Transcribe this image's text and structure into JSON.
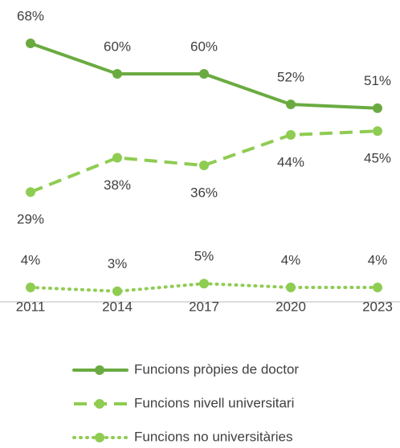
{
  "chart_data": {
    "type": "line",
    "categories": [
      "2011",
      "2014",
      "2017",
      "2020",
      "2023"
    ],
    "series": [
      {
        "name": "Funcions pròpies de doctor",
        "color": "#6aab41",
        "line_style": "solid",
        "label_position": "above",
        "values": [
          68,
          60,
          60,
          52,
          51
        ],
        "value_labels": [
          "68%",
          "60%",
          "60%",
          "52%",
          "51%"
        ]
      },
      {
        "name": "Funcions nivell universitari",
        "color": "#8fcc52",
        "line_style": "dashed",
        "label_position": "below",
        "values": [
          29,
          38,
          36,
          44,
          45
        ],
        "value_labels": [
          "29%",
          "38%",
          "36%",
          "44%",
          "45%"
        ]
      },
      {
        "name": "Funcions no universitàries",
        "color": "#8fcc52",
        "line_style": "dotted",
        "label_position": "above",
        "values": [
          4,
          3,
          5,
          4,
          4
        ],
        "value_labels": [
          "4%",
          "3%",
          "5%",
          "4%",
          "4%"
        ]
      }
    ]
  }
}
